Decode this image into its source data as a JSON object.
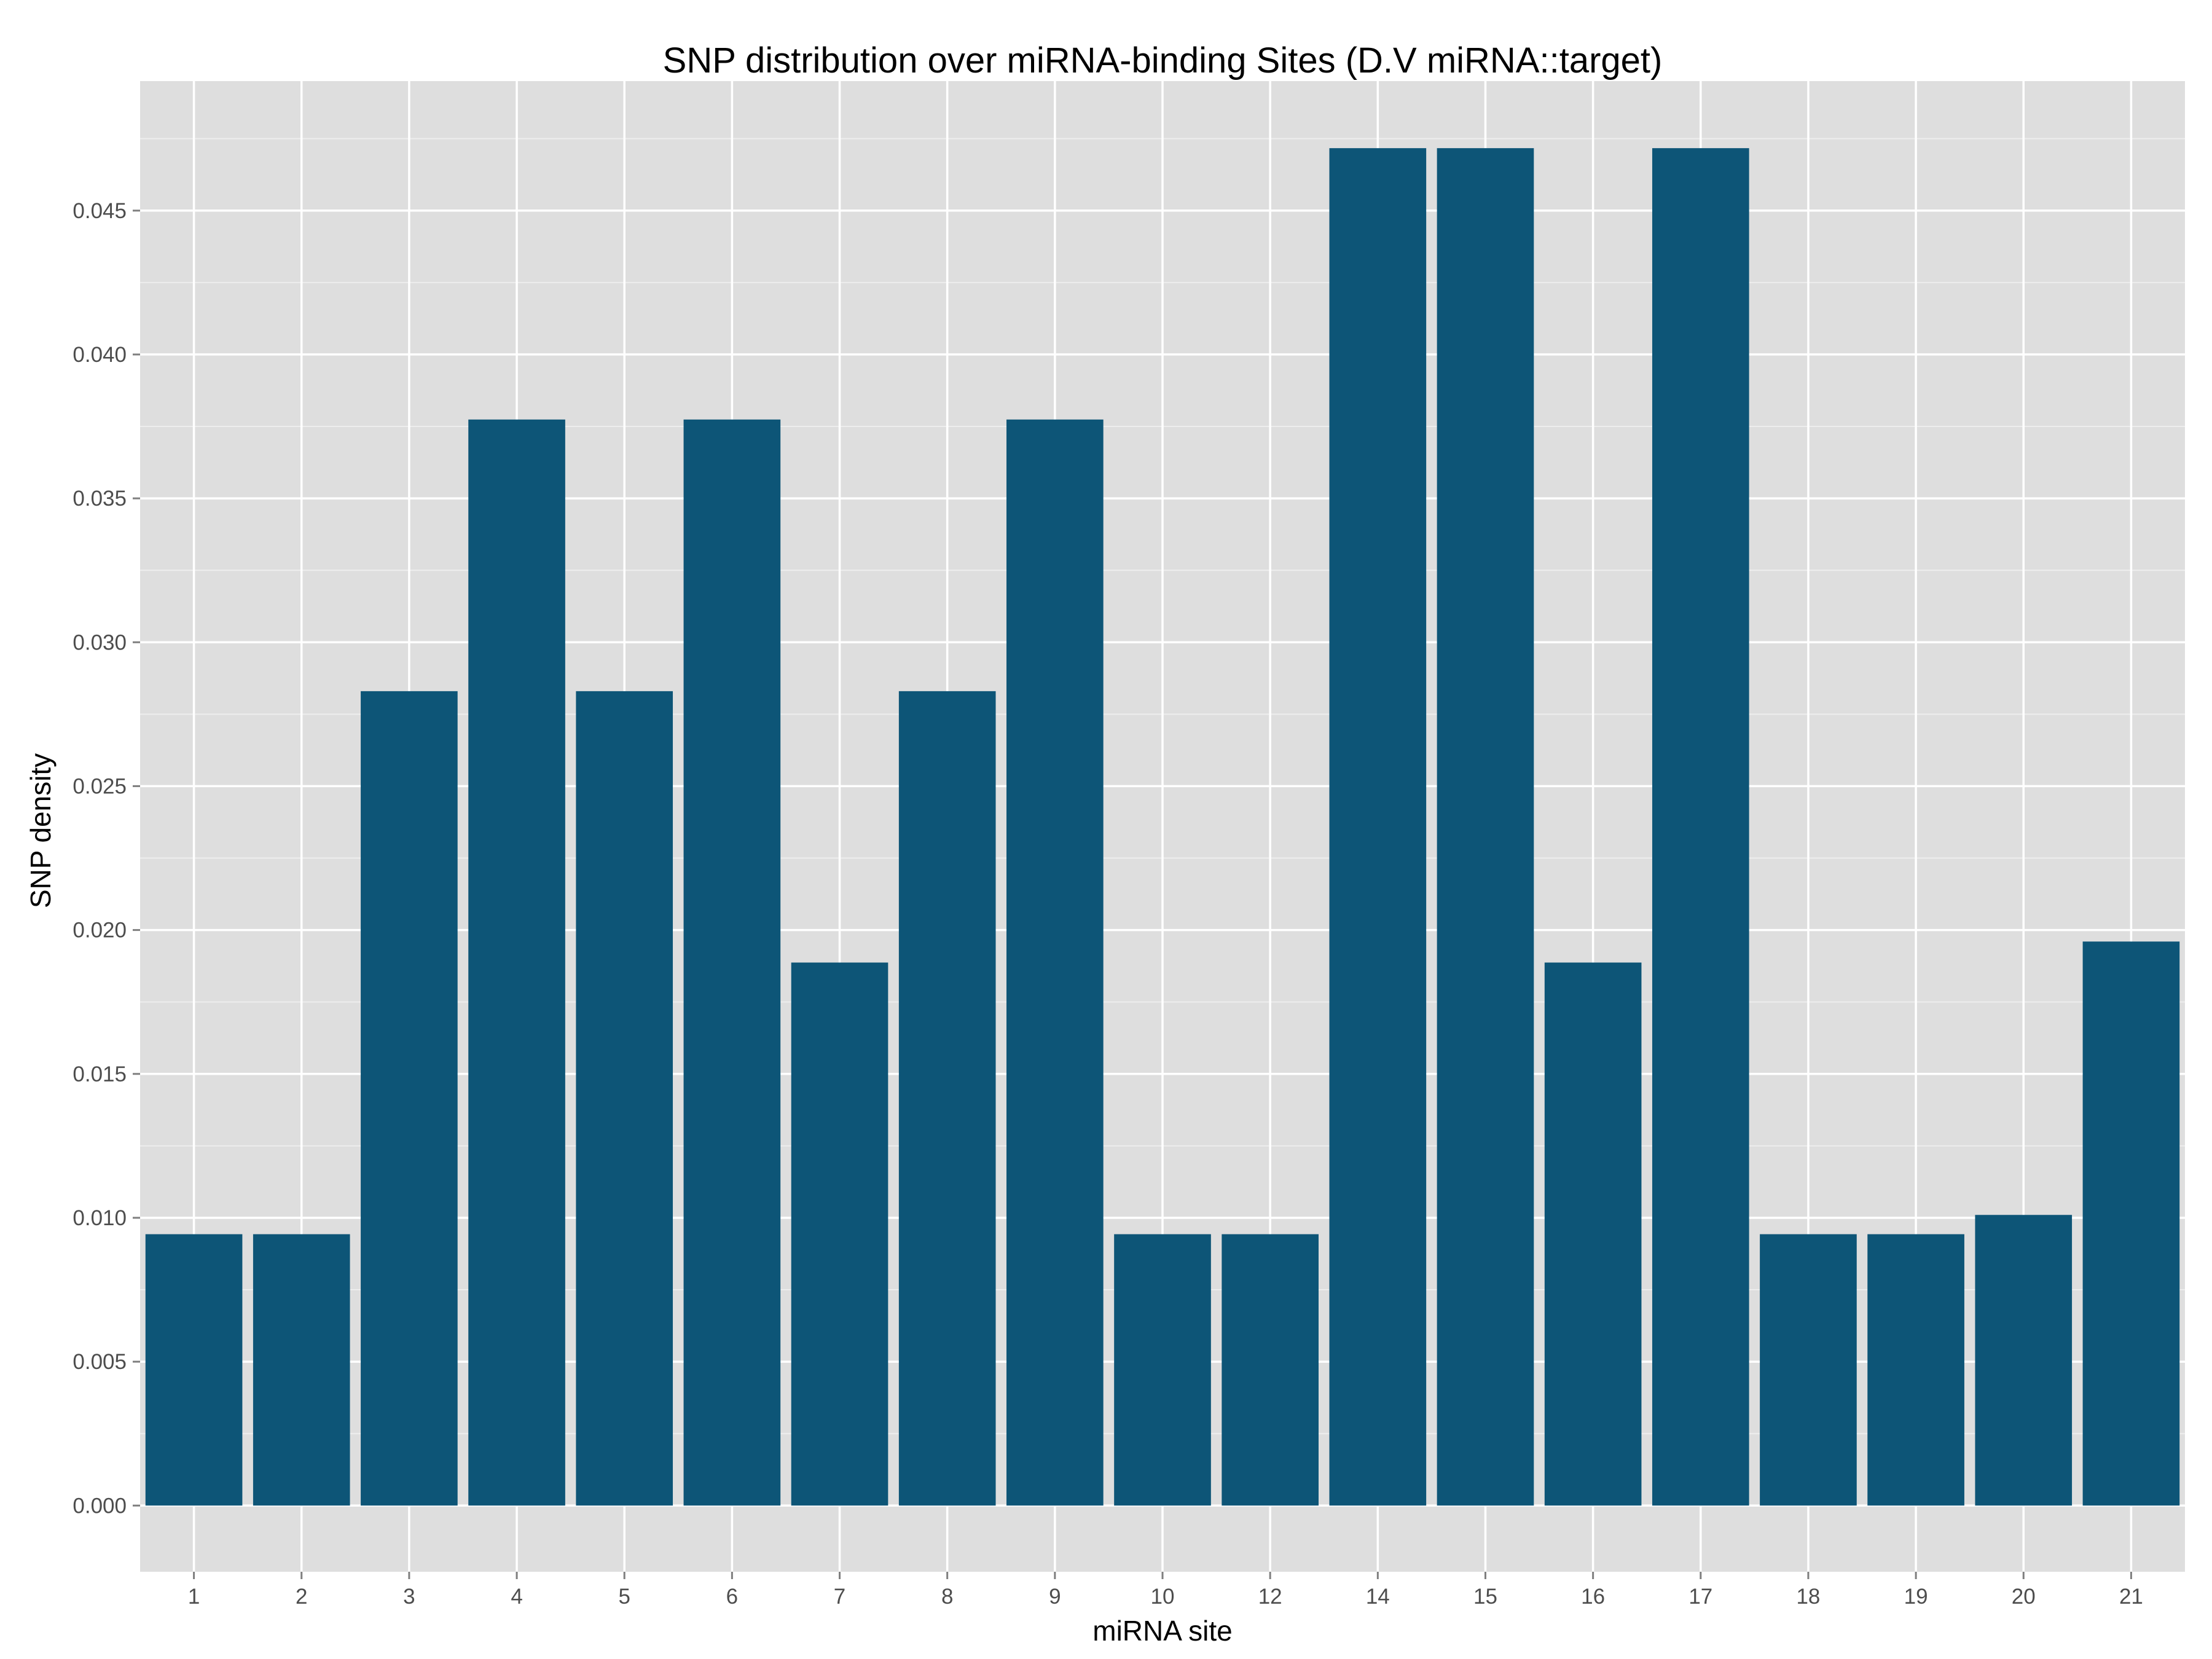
{
  "chart_data": {
    "type": "bar",
    "title": "SNP distribution over miRNA-binding Sites (D.V miRNA::target)",
    "xlabel": "miRNA site",
    "ylabel": "SNP density",
    "categories": [
      "1",
      "2",
      "3",
      "4",
      "5",
      "6",
      "7",
      "8",
      "9",
      "10",
      "12",
      "14",
      "15",
      "16",
      "17",
      "18",
      "19",
      "20",
      "21"
    ],
    "values": [
      0.00943,
      0.00943,
      0.0283,
      0.03774,
      0.0283,
      0.03774,
      0.01887,
      0.0283,
      0.03774,
      0.00943,
      0.00943,
      0.04717,
      0.04717,
      0.01887,
      0.04717,
      0.00943,
      0.00943,
      0.0101,
      0.0196
    ],
    "ylim": [
      -0.0023,
      0.0495
    ],
    "yticks": [
      "0.000",
      "0.005",
      "0.010",
      "0.015",
      "0.020",
      "0.025",
      "0.030",
      "0.035",
      "0.040",
      "0.045"
    ],
    "grid": true,
    "legend": "none",
    "colors": {
      "bar": "#0d5577",
      "panel": "#dedede",
      "grid_major": "#ffffff",
      "grid_minor": "#ededed",
      "tick_text": "#4d4d4d",
      "tick_mark": "#7f7f7f"
    }
  }
}
